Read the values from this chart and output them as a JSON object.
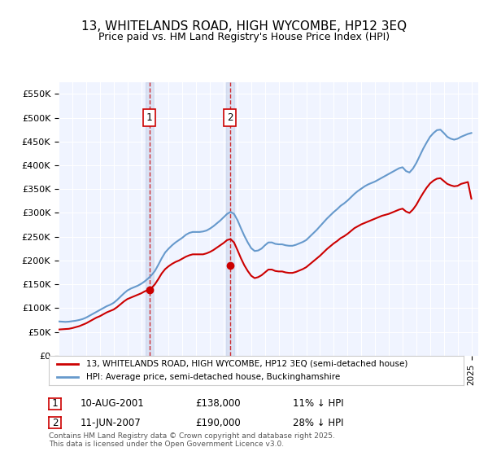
{
  "title": "13, WHITELANDS ROAD, HIGH WYCOMBE, HP12 3EQ",
  "subtitle": "Price paid vs. HM Land Registry's House Price Index (HPI)",
  "xlabel": "",
  "ylabel": "",
  "ylim": [
    0,
    575000
  ],
  "yticks": [
    0,
    50000,
    100000,
    150000,
    200000,
    250000,
    300000,
    350000,
    400000,
    450000,
    500000,
    550000
  ],
  "ytick_labels": [
    "£0",
    "£50K",
    "£100K",
    "£150K",
    "£200K",
    "£250K",
    "£300K",
    "£350K",
    "£400K",
    "£450K",
    "£500K",
    "£550K"
  ],
  "xlim_start": 1995.0,
  "xlim_end": 2025.5,
  "background_color": "#ffffff",
  "plot_bg_color": "#f0f4ff",
  "grid_color": "#ffffff",
  "red_line_color": "#cc0000",
  "blue_line_color": "#6699cc",
  "sale1_year": 2001.6,
  "sale1_price": 138000,
  "sale2_year": 2007.45,
  "sale2_price": 190000,
  "legend_label_red": "13, WHITELANDS ROAD, HIGH WYCOMBE, HP12 3EQ (semi-detached house)",
  "legend_label_blue": "HPI: Average price, semi-detached house, Buckinghamshire",
  "annotation1_date": "10-AUG-2001",
  "annotation1_price": "£138,000",
  "annotation1_hpi": "11% ↓ HPI",
  "annotation2_date": "11-JUN-2007",
  "annotation2_price": "£190,000",
  "annotation2_hpi": "28% ↓ HPI",
  "footer": "Contains HM Land Registry data © Crown copyright and database right 2025.\nThis data is licensed under the Open Government Licence v3.0.",
  "hpi_data": {
    "years": [
      1995.0,
      1995.25,
      1995.5,
      1995.75,
      1996.0,
      1996.25,
      1996.5,
      1996.75,
      1997.0,
      1997.25,
      1997.5,
      1997.75,
      1998.0,
      1998.25,
      1998.5,
      1998.75,
      1999.0,
      1999.25,
      1999.5,
      1999.75,
      2000.0,
      2000.25,
      2000.5,
      2000.75,
      2001.0,
      2001.25,
      2001.5,
      2001.75,
      2002.0,
      2002.25,
      2002.5,
      2002.75,
      2003.0,
      2003.25,
      2003.5,
      2003.75,
      2004.0,
      2004.25,
      2004.5,
      2004.75,
      2005.0,
      2005.25,
      2005.5,
      2005.75,
      2006.0,
      2006.25,
      2006.5,
      2006.75,
      2007.0,
      2007.25,
      2007.5,
      2007.75,
      2008.0,
      2008.25,
      2008.5,
      2008.75,
      2009.0,
      2009.25,
      2009.5,
      2009.75,
      2010.0,
      2010.25,
      2010.5,
      2010.75,
      2011.0,
      2011.25,
      2011.5,
      2011.75,
      2012.0,
      2012.25,
      2012.5,
      2012.75,
      2013.0,
      2013.25,
      2013.5,
      2013.75,
      2014.0,
      2014.25,
      2014.5,
      2014.75,
      2015.0,
      2015.25,
      2015.5,
      2015.75,
      2016.0,
      2016.25,
      2016.5,
      2016.75,
      2017.0,
      2017.25,
      2017.5,
      2017.75,
      2018.0,
      2018.25,
      2018.5,
      2018.75,
      2019.0,
      2019.25,
      2019.5,
      2019.75,
      2020.0,
      2020.25,
      2020.5,
      2020.75,
      2021.0,
      2021.25,
      2021.5,
      2021.75,
      2022.0,
      2022.25,
      2022.5,
      2022.75,
      2023.0,
      2023.25,
      2023.5,
      2023.75,
      2024.0,
      2024.25,
      2024.5,
      2024.75,
      2025.0
    ],
    "values": [
      72000,
      71500,
      71000,
      71500,
      72500,
      73500,
      75000,
      77000,
      80000,
      84000,
      88000,
      92000,
      96000,
      100000,
      104000,
      107000,
      111000,
      117000,
      124000,
      131000,
      137000,
      141000,
      144000,
      147000,
      151000,
      156000,
      162000,
      169000,
      178000,
      191000,
      205000,
      217000,
      225000,
      232000,
      238000,
      243000,
      248000,
      254000,
      258000,
      260000,
      260000,
      260000,
      261000,
      263000,
      267000,
      272000,
      278000,
      284000,
      291000,
      298000,
      302000,
      298000,
      285000,
      268000,
      252000,
      238000,
      226000,
      220000,
      221000,
      225000,
      232000,
      238000,
      238000,
      235000,
      234000,
      234000,
      232000,
      231000,
      231000,
      233000,
      236000,
      239000,
      243000,
      250000,
      257000,
      264000,
      272000,
      280000,
      288000,
      295000,
      302000,
      308000,
      315000,
      320000,
      326000,
      333000,
      340000,
      346000,
      351000,
      356000,
      360000,
      363000,
      366000,
      370000,
      374000,
      378000,
      382000,
      386000,
      390000,
      394000,
      396000,
      388000,
      385000,
      393000,
      405000,
      420000,
      435000,
      448000,
      460000,
      468000,
      474000,
      475000,
      468000,
      460000,
      456000,
      454000,
      456000,
      460000,
      463000,
      466000,
      468000
    ]
  },
  "price_data": {
    "years": [
      1995.0,
      1995.25,
      1995.5,
      1995.75,
      1996.0,
      1996.25,
      1996.5,
      1996.75,
      1997.0,
      1997.25,
      1997.5,
      1997.75,
      1998.0,
      1998.25,
      1998.5,
      1998.75,
      1999.0,
      1999.25,
      1999.5,
      1999.75,
      2000.0,
      2000.25,
      2000.5,
      2000.75,
      2001.0,
      2001.25,
      2001.5,
      2001.75,
      2002.0,
      2002.25,
      2002.5,
      2002.75,
      2003.0,
      2003.25,
      2003.5,
      2003.75,
      2004.0,
      2004.25,
      2004.5,
      2004.75,
      2005.0,
      2005.25,
      2005.5,
      2005.75,
      2006.0,
      2006.25,
      2006.5,
      2006.75,
      2007.0,
      2007.25,
      2007.5,
      2007.75,
      2008.0,
      2008.25,
      2008.5,
      2008.75,
      2009.0,
      2009.25,
      2009.5,
      2009.75,
      2010.0,
      2010.25,
      2010.5,
      2010.75,
      2011.0,
      2011.25,
      2011.5,
      2011.75,
      2012.0,
      2012.25,
      2012.5,
      2012.75,
      2013.0,
      2013.25,
      2013.5,
      2013.75,
      2014.0,
      2014.25,
      2014.5,
      2014.75,
      2015.0,
      2015.25,
      2015.5,
      2015.75,
      2016.0,
      2016.25,
      2016.5,
      2016.75,
      2017.0,
      2017.25,
      2017.5,
      2017.75,
      2018.0,
      2018.25,
      2018.5,
      2018.75,
      2019.0,
      2019.25,
      2019.5,
      2019.75,
      2020.0,
      2020.25,
      2020.5,
      2020.75,
      2021.0,
      2021.25,
      2021.5,
      2021.75,
      2022.0,
      2022.25,
      2022.5,
      2022.75,
      2023.0,
      2023.25,
      2023.5,
      2023.75,
      2024.0,
      2024.25,
      2024.5,
      2024.75,
      2025.0
    ],
    "values": [
      55000,
      55500,
      56000,
      56500,
      58000,
      60000,
      62000,
      65000,
      68000,
      72000,
      76000,
      80000,
      83000,
      87000,
      91000,
      94000,
      97000,
      102000,
      108000,
      114000,
      119000,
      122000,
      125000,
      128000,
      131000,
      135000,
      138000,
      142000,
      150000,
      161000,
      173000,
      182000,
      188000,
      193000,
      197000,
      200000,
      204000,
      208000,
      211000,
      213000,
      213000,
      213000,
      213000,
      215000,
      218000,
      222000,
      227000,
      232000,
      237000,
      243000,
      245000,
      238000,
      222000,
      205000,
      190000,
      178000,
      168000,
      163000,
      165000,
      169000,
      175000,
      181000,
      181000,
      178000,
      177000,
      177000,
      175000,
      174000,
      174000,
      176000,
      179000,
      182000,
      186000,
      192000,
      198000,
      204000,
      210000,
      217000,
      224000,
      230000,
      236000,
      241000,
      247000,
      251000,
      256000,
      262000,
      268000,
      272000,
      276000,
      279000,
      282000,
      285000,
      288000,
      291000,
      294000,
      296000,
      298000,
      301000,
      304000,
      307000,
      309000,
      303000,
      300000,
      307000,
      317000,
      330000,
      342000,
      353000,
      362000,
      368000,
      372000,
      373000,
      367000,
      361000,
      358000,
      356000,
      357000,
      361000,
      363000,
      365000,
      330000
    ]
  }
}
